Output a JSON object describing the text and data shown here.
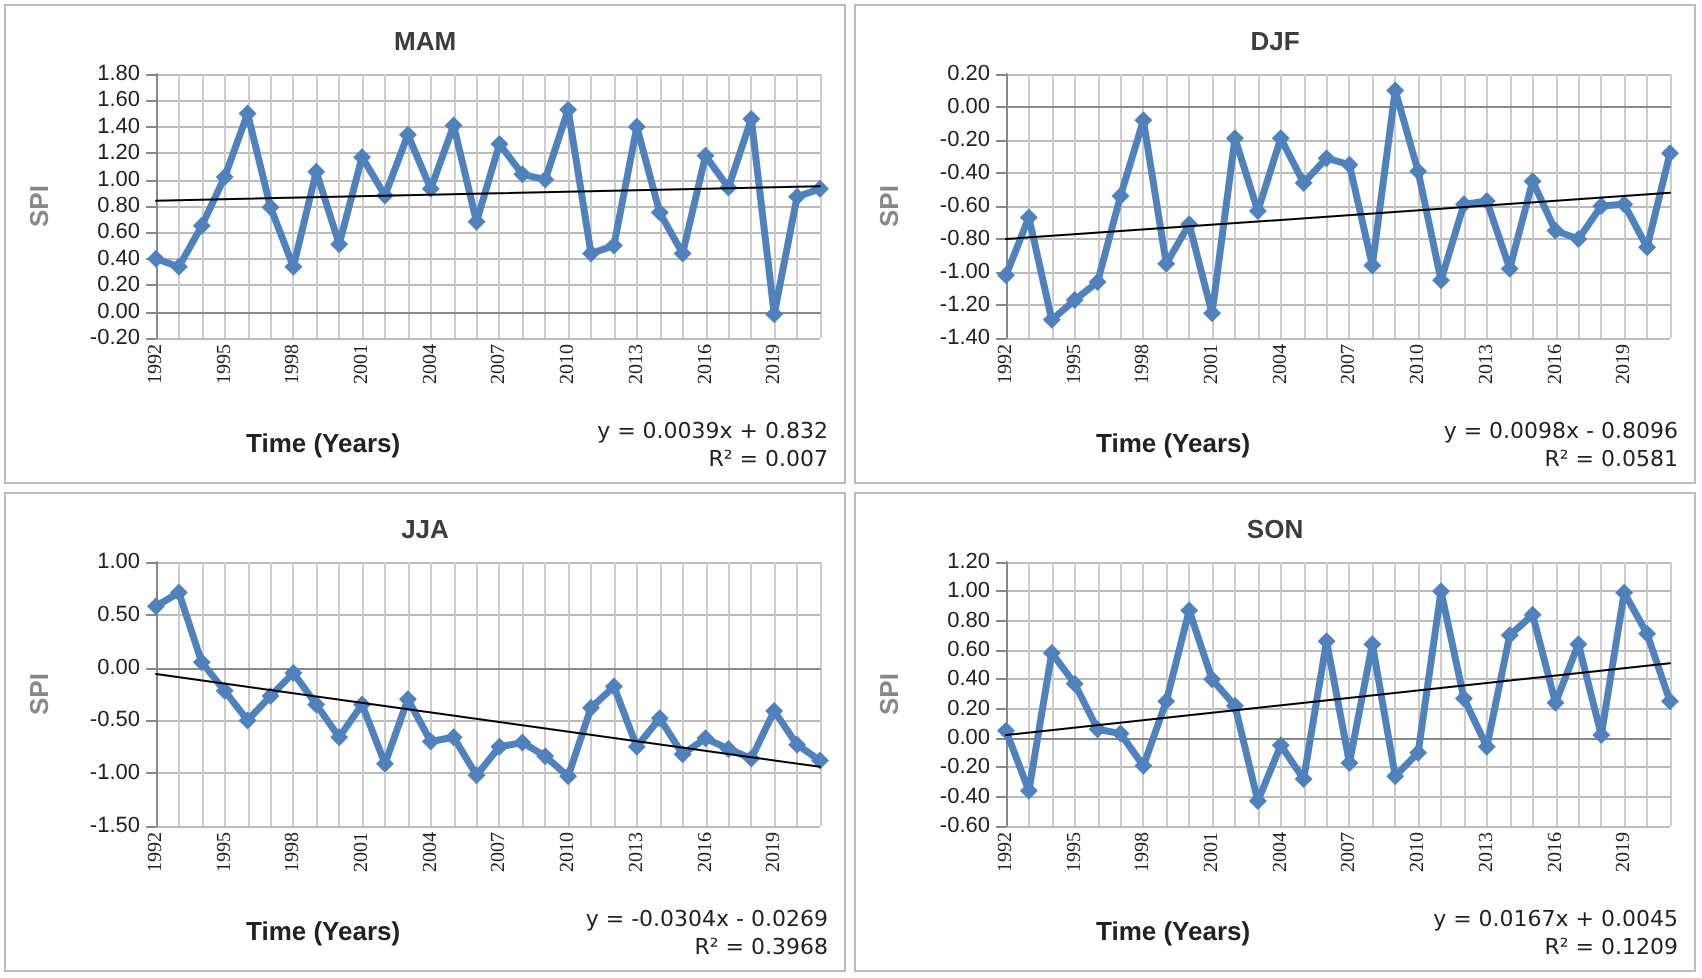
{
  "chart_data": [
    {
      "type": "line",
      "title": "MAM",
      "xlabel": "Time (Years)",
      "ylabel": "SPI",
      "categories": [
        "1992",
        null,
        null,
        "1995",
        null,
        null,
        "1998",
        null,
        null,
        "2001",
        null,
        null,
        "2004",
        null,
        null,
        "2007",
        null,
        null,
        "2010",
        null,
        null,
        "2013",
        null,
        null,
        "2016",
        null,
        null,
        "2019",
        null,
        null
      ],
      "series": [
        {
          "color": "#4f81bd",
          "values": [
            0.4,
            0.34,
            0.65,
            1.02,
            1.5,
            0.79,
            0.34,
            1.06,
            0.51,
            1.17,
            0.88,
            1.34,
            0.93,
            1.41,
            0.68,
            1.27,
            1.04,
            1.0,
            1.53,
            0.44,
            0.5,
            1.4,
            0.75,
            0.44,
            1.18,
            0.94,
            1.46,
            -0.02,
            0.87,
            0.93
          ]
        },
        {
          "type": "line",
          "color": "#000000",
          "marker": "none",
          "values": [
            0.84,
            null,
            null,
            null,
            null,
            null,
            null,
            null,
            null,
            null,
            null,
            null,
            null,
            null,
            null,
            null,
            null,
            null,
            null,
            null,
            null,
            null,
            null,
            null,
            null,
            null,
            null,
            null,
            null,
            0.95
          ]
        }
      ],
      "ylim": [
        -0.2,
        1.8
      ],
      "yticks": [
        {
          "value": -0.2,
          "label": "-0.20"
        },
        {
          "value": 0,
          "label": "0.00"
        },
        {
          "value": 0.2,
          "label": "0.20"
        },
        {
          "value": 0.4,
          "label": "0.40"
        },
        {
          "value": 0.6,
          "label": "0.60"
        },
        {
          "value": 0.8,
          "label": "0.80"
        },
        {
          "value": 1,
          "label": "1.00"
        },
        {
          "value": 1.2,
          "label": "1.20"
        },
        {
          "value": 1.4,
          "label": "1.40"
        },
        {
          "value": 1.6,
          "label": "1.60"
        },
        {
          "value": 1.8,
          "label": "1.80"
        }
      ],
      "grid": true,
      "marker": "diamond",
      "annotations": [
        "y = 0.0039x + 0.832",
        "R² = 0.007"
      ]
    },
    {
      "type": "line",
      "title": "DJF",
      "xlabel": "Time (Years)",
      "ylabel": "SPI",
      "categories": [
        "1992",
        null,
        null,
        "1995",
        null,
        null,
        "1998",
        null,
        null,
        "2001",
        null,
        null,
        "2004",
        null,
        null,
        "2007",
        null,
        null,
        "2010",
        null,
        null,
        "2013",
        null,
        null,
        "2016",
        null,
        null,
        "2019",
        null,
        null
      ],
      "series": [
        {
          "color": "#4f81bd",
          "values": [
            -1.02,
            -0.67,
            -1.29,
            -1.17,
            -1.06,
            -0.54,
            -0.08,
            -0.95,
            -0.71,
            -1.25,
            -0.19,
            -0.63,
            -0.19,
            -0.46,
            -0.31,
            -0.35,
            -0.96,
            0.1,
            -0.39,
            -1.05,
            -0.59,
            -0.57,
            -0.98,
            -0.45,
            -0.75,
            -0.8,
            -0.6,
            -0.59,
            -0.85,
            -0.28
          ]
        },
        {
          "type": "line",
          "color": "#000000",
          "marker": "none",
          "values": [
            -0.8,
            null,
            null,
            null,
            null,
            null,
            null,
            null,
            null,
            null,
            null,
            null,
            null,
            null,
            null,
            null,
            null,
            null,
            null,
            null,
            null,
            null,
            null,
            null,
            null,
            null,
            null,
            null,
            null,
            -0.52
          ]
        }
      ],
      "ylim": [
        -1.4,
        0.2
      ],
      "yticks": [
        {
          "value": -1.4,
          "label": "-1.40"
        },
        {
          "value": -1.2,
          "label": "-1.20"
        },
        {
          "value": -1,
          "label": "-1.00"
        },
        {
          "value": -0.8,
          "label": "-0.80"
        },
        {
          "value": -0.6,
          "label": "-0.60"
        },
        {
          "value": -0.4,
          "label": "-0.40"
        },
        {
          "value": -0.2,
          "label": "-0.20"
        },
        {
          "value": 0,
          "label": "0.00"
        },
        {
          "value": 0.2,
          "label": "0.20"
        }
      ],
      "grid": true,
      "marker": "diamond",
      "annotations": [
        "y = 0.0098x - 0.8096",
        "R² = 0.0581"
      ]
    },
    {
      "type": "line",
      "title": "JJA",
      "xlabel": "Time (Years)",
      "ylabel": "SPI",
      "categories": [
        "1992",
        null,
        null,
        "1995",
        null,
        null,
        "1998",
        null,
        null,
        "2001",
        null,
        null,
        "2004",
        null,
        null,
        "2007",
        null,
        null,
        "2010",
        null,
        null,
        "2013",
        null,
        null,
        "2016",
        null,
        null,
        "2019",
        null,
        null
      ],
      "series": [
        {
          "color": "#4f81bd",
          "values": [
            0.58,
            0.71,
            0.05,
            -0.22,
            -0.5,
            -0.27,
            -0.05,
            -0.35,
            -0.66,
            -0.35,
            -0.91,
            -0.3,
            -0.7,
            -0.66,
            -1.02,
            -0.75,
            -0.71,
            -0.84,
            -1.03,
            -0.38,
            -0.18,
            -0.75,
            -0.48,
            -0.82,
            -0.67,
            -0.77,
            -0.86,
            -0.41,
            -0.73,
            -0.88
          ]
        },
        {
          "type": "line",
          "color": "#000000",
          "marker": "none",
          "values": [
            -0.06,
            null,
            null,
            null,
            null,
            null,
            null,
            null,
            null,
            null,
            null,
            null,
            null,
            null,
            null,
            null,
            null,
            null,
            null,
            null,
            null,
            null,
            null,
            null,
            null,
            null,
            null,
            null,
            null,
            -0.94
          ]
        }
      ],
      "ylim": [
        -1.5,
        1
      ],
      "yticks": [
        {
          "value": -1.5,
          "label": "-1.50"
        },
        {
          "value": -1,
          "label": "-1.00"
        },
        {
          "value": -0.5,
          "label": "-0.50"
        },
        {
          "value": 0,
          "label": "0.00"
        },
        {
          "value": 0.5,
          "label": "0.50"
        },
        {
          "value": 1,
          "label": "1.00"
        }
      ],
      "grid": true,
      "marker": "diamond",
      "annotations": [
        "y = -0.0304x - 0.0269",
        "R² = 0.3968"
      ]
    },
    {
      "type": "line",
      "title": "SON",
      "xlabel": "Time (Years)",
      "ylabel": "SPI",
      "categories": [
        "1992",
        null,
        null,
        "1995",
        null,
        null,
        "1998",
        null,
        null,
        "2001",
        null,
        null,
        "2004",
        null,
        null,
        "2007",
        null,
        null,
        "2010",
        null,
        null,
        "2013",
        null,
        null,
        "2016",
        null,
        null,
        "2019",
        null,
        null
      ],
      "series": [
        {
          "color": "#4f81bd",
          "values": [
            0.05,
            -0.36,
            0.58,
            0.37,
            0.06,
            0.03,
            -0.19,
            0.25,
            0.87,
            0.4,
            0.22,
            -0.43,
            -0.05,
            -0.28,
            0.66,
            -0.17,
            0.64,
            -0.26,
            -0.1,
            1.0,
            0.27,
            -0.06,
            0.7,
            0.84,
            0.24,
            0.64,
            0.02,
            0.99,
            0.71,
            0.25
          ]
        },
        {
          "type": "line",
          "color": "#000000",
          "marker": "none",
          "values": [
            0.02,
            null,
            null,
            null,
            null,
            null,
            null,
            null,
            null,
            null,
            null,
            null,
            null,
            null,
            null,
            null,
            null,
            null,
            null,
            null,
            null,
            null,
            null,
            null,
            null,
            null,
            null,
            null,
            null,
            0.51
          ]
        }
      ],
      "ylim": [
        -0.6,
        1.2
      ],
      "yticks": [
        {
          "value": -0.6,
          "label": "-0.60"
        },
        {
          "value": -0.4,
          "label": "-0.40"
        },
        {
          "value": -0.2,
          "label": "-0.20"
        },
        {
          "value": 0,
          "label": "0.00"
        },
        {
          "value": 0.2,
          "label": "0.20"
        },
        {
          "value": 0.4,
          "label": "0.40"
        },
        {
          "value": 0.6,
          "label": "0.60"
        },
        {
          "value": 0.8,
          "label": "0.80"
        },
        {
          "value": 1,
          "label": "1.00"
        },
        {
          "value": 1.2,
          "label": "1.20"
        }
      ],
      "grid": true,
      "marker": "diamond",
      "annotations": [
        "y = 0.0167x + 0.0045",
        "R² = 0.1209"
      ]
    }
  ]
}
